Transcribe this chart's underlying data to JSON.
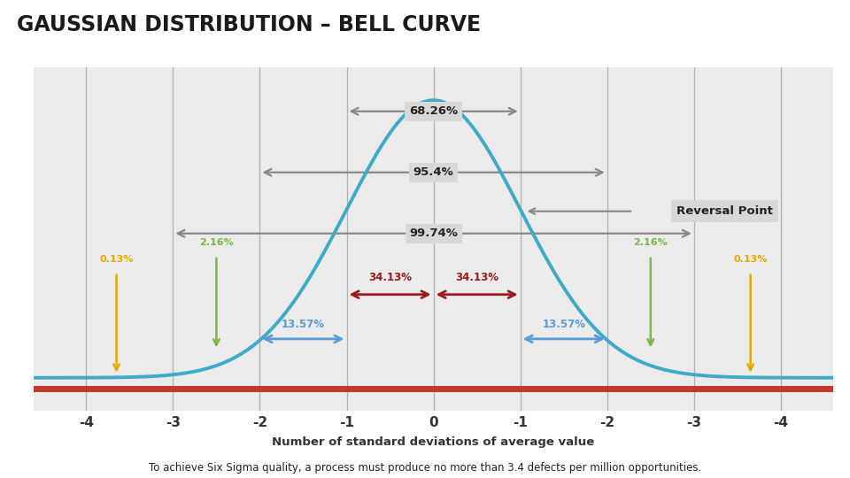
{
  "title": "GAUSSIAN DISTRIBUTION – BELL CURVE",
  "subtitle": "To achieve Six Sigma quality, a process must produce no more than 3.4 defects per million opportunities.",
  "xlabel": "Number of standard deviations of average value",
  "bg_color": "#ebebeb",
  "fig_bg": "#ffffff",
  "curve_color": "#3fa9c8",
  "curve_lw": 2.8,
  "baseline_color": "#c0392b",
  "baseline_lw": 5,
  "tick_labels": [
    "-4",
    "-3",
    "-2",
    "-1",
    "0",
    "-1",
    "-2",
    "-3",
    "-4"
  ],
  "tick_positions": [
    -4,
    -3,
    -2,
    -1,
    0,
    1,
    2,
    3,
    4
  ],
  "pct_68": "68.26%",
  "pct_95": "95.4%",
  "pct_99": "99.74%",
  "pct_3413": "34.13%",
  "pct_1357": "13.57%",
  "pct_216": "2.16%",
  "pct_013": "0.13%",
  "reversal_label": "Reversal Point",
  "gray_arrow_color": "#888888",
  "red_arrow_color": "#9e1a1a",
  "blue_arrow_color": "#5b9bd5",
  "green_text_color": "#7ab648",
  "yellow_arrow_color": "#e8a800",
  "box_color": "#d8d8d8",
  "reversal_box_color": "#d8d8d8"
}
